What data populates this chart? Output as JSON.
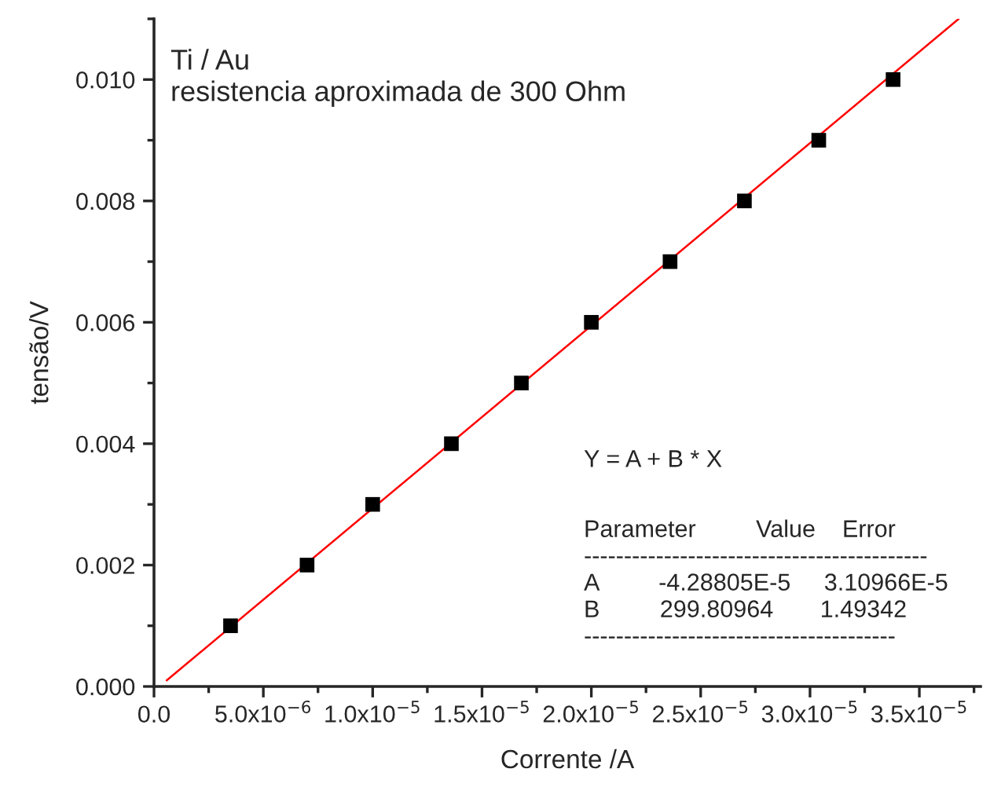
{
  "chart_data": {
    "type": "scatter",
    "xlabel": "Corrente /A",
    "ylabel": "tensão/V",
    "xlim": [
      0,
      3.78e-05
    ],
    "ylim": [
      0,
      0.011
    ],
    "xticks": [
      {
        "value": 0,
        "label": "0.0"
      },
      {
        "value": 5e-06,
        "label": "5.0x10$^{−6}$"
      },
      {
        "value": 1e-05,
        "label": "1.0x10$^{−5}$"
      },
      {
        "value": 1.5e-05,
        "label": "1.5x10$^{−5}$"
      },
      {
        "value": 2e-05,
        "label": "2.0x10$^{−5}$"
      },
      {
        "value": 2.5e-05,
        "label": "2.5x10$^{−5}$"
      },
      {
        "value": 3e-05,
        "label": "3.0x10$^{−5}$"
      },
      {
        "value": 3.5e-05,
        "label": "3.5x10$^{−5}$"
      }
    ],
    "yticks": [
      {
        "value": 0,
        "label": "0.000"
      },
      {
        "value": 0.002,
        "label": "0.002"
      },
      {
        "value": 0.004,
        "label": "0.004"
      },
      {
        "value": 0.006,
        "label": "0.006"
      },
      {
        "value": 0.008,
        "label": "0.008"
      },
      {
        "value": 0.01,
        "label": "0.010"
      }
    ],
    "grid": false,
    "legend": false,
    "series": [
      {
        "marker": "square",
        "color": "#000000",
        "x": [
          3.5e-06,
          7e-06,
          1e-05,
          1.36e-05,
          1.68e-05,
          2e-05,
          2.36e-05,
          2.7e-05,
          3.04e-05,
          3.38e-05
        ],
        "values": [
          0.001,
          0.002,
          0.003,
          0.004,
          0.005,
          0.006,
          0.007,
          0.008,
          0.009,
          0.01
        ]
      },
      {
        "type": "line",
        "marker": "none",
        "color": "#ff0000",
        "x": [
          5.8e-07,
          3.68e-05
        ],
        "values": [
          0.0001,
          0.011
        ]
      }
    ],
    "annotations": [
      "Ti / Au\nresistencia aproximada de 300 Ohm",
      "Y = A + B * X",
      "Parameter         Value    Error\n-------------------------------------------\nA         -4.28805E-5     3.10966E-5\nB         299.80964       1.49342\n---------------------------------------"
    ]
  }
}
